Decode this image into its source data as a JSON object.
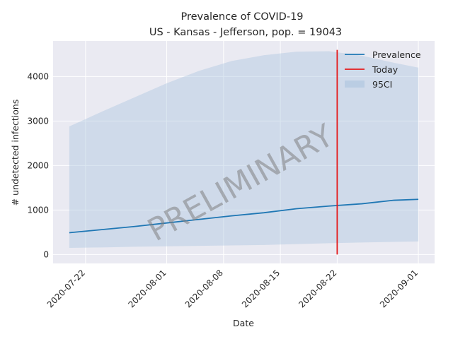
{
  "chart_data": {
    "type": "line",
    "title": "Prevalence of COVID-19",
    "subtitle": "US - Kansas - Jefferson, pop. = 19043",
    "xlabel": "Date",
    "ylabel": "# undetected infections",
    "xlim": [
      "2020-07-18",
      "2020-09-03"
    ],
    "ylim": [
      -200,
      4800
    ],
    "x_ticks": [
      "2020-07-22",
      "2020-08-01",
      "2020-08-08",
      "2020-08-15",
      "2020-08-22",
      "2020-09-01"
    ],
    "y_ticks": [
      0,
      1000,
      2000,
      3000,
      4000
    ],
    "grid": true,
    "watermark": "PRELIMINARY",
    "today": "2020-08-22",
    "today_range": [
      0,
      4600
    ],
    "legend": {
      "position": "top-right",
      "entries": [
        "Prevalence",
        "Today",
        "95CI"
      ]
    },
    "colors": {
      "prevalence": "#1f77b4",
      "today": "#e41a1c",
      "ci_fill": "#b0c8e0",
      "background": "#eaeaf2",
      "grid": "#ffffff"
    },
    "series": [
      {
        "name": "Prevalence",
        "x": [
          "2020-07-20",
          "2020-07-24",
          "2020-07-28",
          "2020-08-01",
          "2020-08-05",
          "2020-08-09",
          "2020-08-13",
          "2020-08-17",
          "2020-08-21",
          "2020-08-25",
          "2020-08-29",
          "2020-09-01"
        ],
        "values": [
          490,
          560,
          630,
          710,
          790,
          870,
          940,
          1030,
          1090,
          1140,
          1220,
          1240
        ]
      },
      {
        "name": "95CI",
        "x": [
          "2020-07-20",
          "2020-07-24",
          "2020-07-28",
          "2020-08-01",
          "2020-08-05",
          "2020-08-09",
          "2020-08-13",
          "2020-08-17",
          "2020-08-21",
          "2020-08-25",
          "2020-08-29",
          "2020-09-01"
        ],
        "upper": [
          2880,
          3210,
          3530,
          3850,
          4130,
          4350,
          4480,
          4560,
          4570,
          4470,
          4310,
          4200
        ],
        "lower": [
          150,
          160,
          175,
          185,
          195,
          205,
          215,
          235,
          255,
          270,
          285,
          295
        ]
      }
    ]
  }
}
